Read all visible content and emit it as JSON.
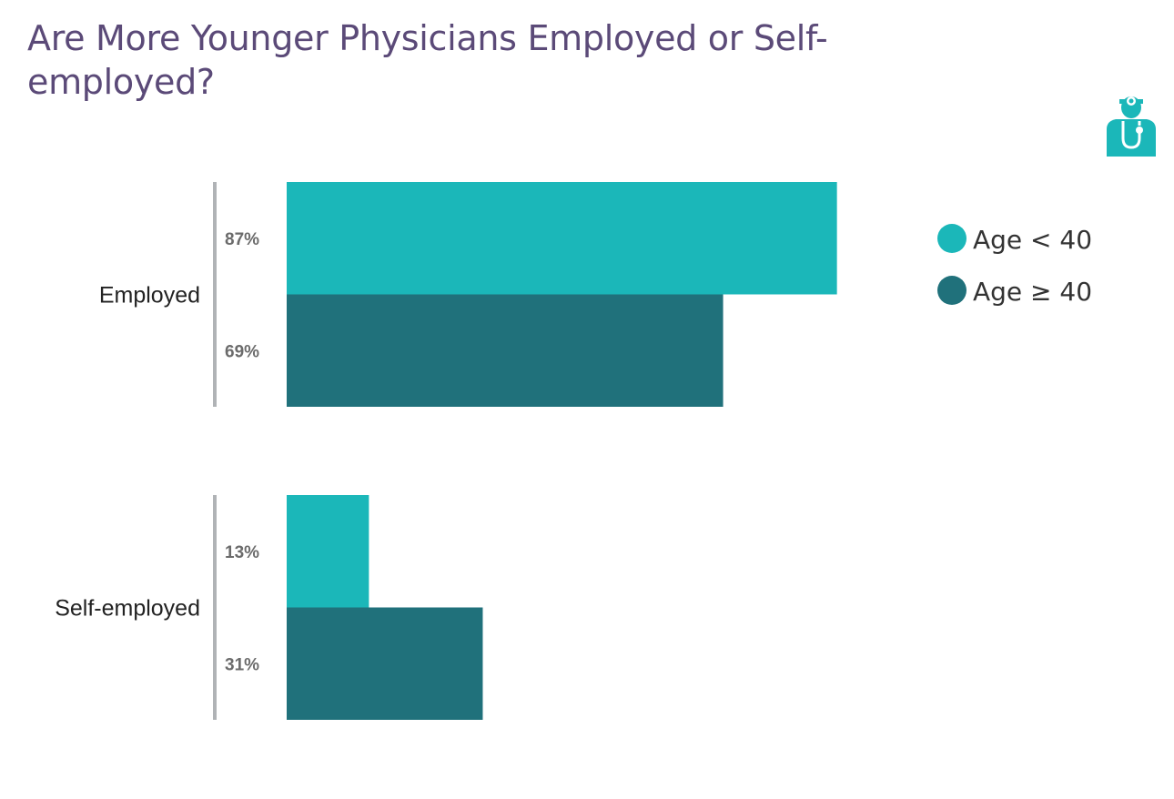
{
  "chart_data": {
    "type": "bar",
    "orientation": "horizontal",
    "title": "Are More Younger Physicians Employed or Self-employed?",
    "categories": [
      "Employed",
      "Self-employed"
    ],
    "series": [
      {
        "name": "Age < 40",
        "color": "#1bb7b9",
        "values": [
          87,
          13
        ],
        "labels": [
          "87%",
          "13%"
        ]
      },
      {
        "name": "Age ≥ 40",
        "color": "#20717b",
        "values": [
          69,
          31
        ],
        "labels": [
          "69%",
          "31%"
        ]
      }
    ],
    "xlim": [
      0,
      100
    ],
    "grid": false,
    "legend_position": "right"
  },
  "logo": {
    "icon": "doctor-stethoscope-icon",
    "color": "#1bb7b9"
  },
  "colors": {
    "title": "#5b4a78",
    "axis": "#b0b3b6"
  }
}
